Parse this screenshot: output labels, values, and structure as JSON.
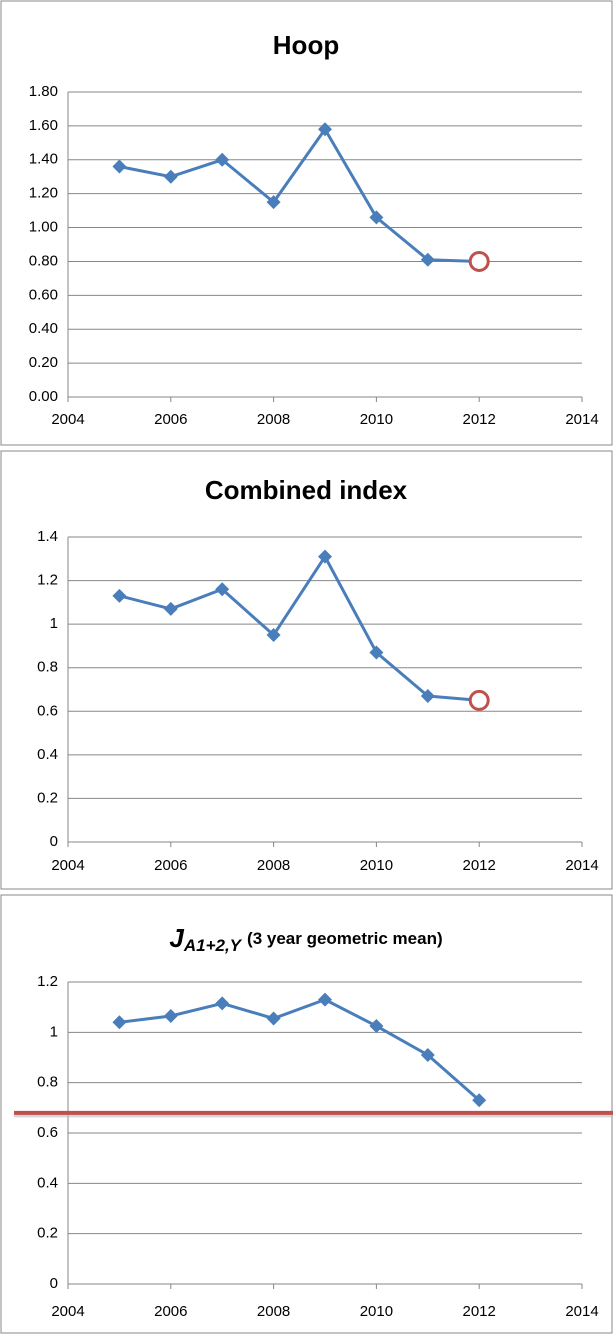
{
  "chart_data": [
    {
      "type": "line",
      "title": "Hoop",
      "xlim": [
        2004,
        2014
      ],
      "xticks": [
        2004,
        2006,
        2008,
        2010,
        2012,
        2014
      ],
      "ylim": [
        0,
        1.8
      ],
      "yticks": [
        {
          "value": 0,
          "label": "0.00"
        },
        {
          "value": 0.2,
          "label": "0.20"
        },
        {
          "value": 0.4,
          "label": "0.40"
        },
        {
          "value": 0.6,
          "label": "0.60"
        },
        {
          "value": 0.8,
          "label": "0.80"
        },
        {
          "value": 1.0,
          "label": "1.00"
        },
        {
          "value": 1.2,
          "label": "1.20"
        },
        {
          "value": 1.4,
          "label": "1.40"
        },
        {
          "value": 1.6,
          "label": "1.60"
        },
        {
          "value": 1.8,
          "label": "1.80"
        }
      ],
      "grid": true,
      "series": [
        {
          "color": "#4a7ebb",
          "x": [
            2005,
            2006,
            2007,
            2008,
            2009,
            2010,
            2011
          ],
          "values": [
            1.36,
            1.3,
            1.4,
            1.15,
            1.58,
            1.06,
            0.81
          ]
        }
      ],
      "target": {
        "x": 2012,
        "value": 0.8,
        "color": "#c0504d"
      }
    },
    {
      "type": "line",
      "title": "Combined index",
      "xlim": [
        2004,
        2014
      ],
      "xticks": [
        2004,
        2006,
        2008,
        2010,
        2012,
        2014
      ],
      "ylim": [
        0,
        1.4
      ],
      "yticks": [
        0,
        0.2,
        0.4,
        0.6,
        0.8,
        1,
        1.2,
        1.4
      ],
      "grid": true,
      "series": [
        {
          "color": "#4a7ebb",
          "x": [
            2005,
            2006,
            2007,
            2008,
            2009,
            2010,
            2011
          ],
          "values": [
            1.13,
            1.07,
            1.16,
            0.95,
            1.31,
            0.87,
            0.67
          ]
        }
      ],
      "target": {
        "x": 2012,
        "value": 0.65,
        "color": "#c0504d"
      }
    },
    {
      "type": "line",
      "title": "J",
      "title_subscript": "A1+2,Y",
      "subtitle": "(3 year geometric mean)",
      "xlim": [
        2004,
        2014
      ],
      "xticks": [
        2004,
        2006,
        2008,
        2010,
        2012,
        2014
      ],
      "ylim": [
        0,
        1.2
      ],
      "yticks": [
        0,
        0.2,
        0.4,
        0.6,
        0.8,
        1,
        1.2
      ],
      "grid": true,
      "series": [
        {
          "color": "#4a7ebb",
          "x": [
            2005,
            2006,
            2007,
            2008,
            2009,
            2010,
            2011,
            2012
          ],
          "values": [
            1.04,
            1.065,
            1.115,
            1.055,
            1.13,
            1.025,
            0.91,
            0.73
          ]
        }
      ],
      "reference_line": 0.68,
      "reference_color": "#c0504d"
    }
  ]
}
